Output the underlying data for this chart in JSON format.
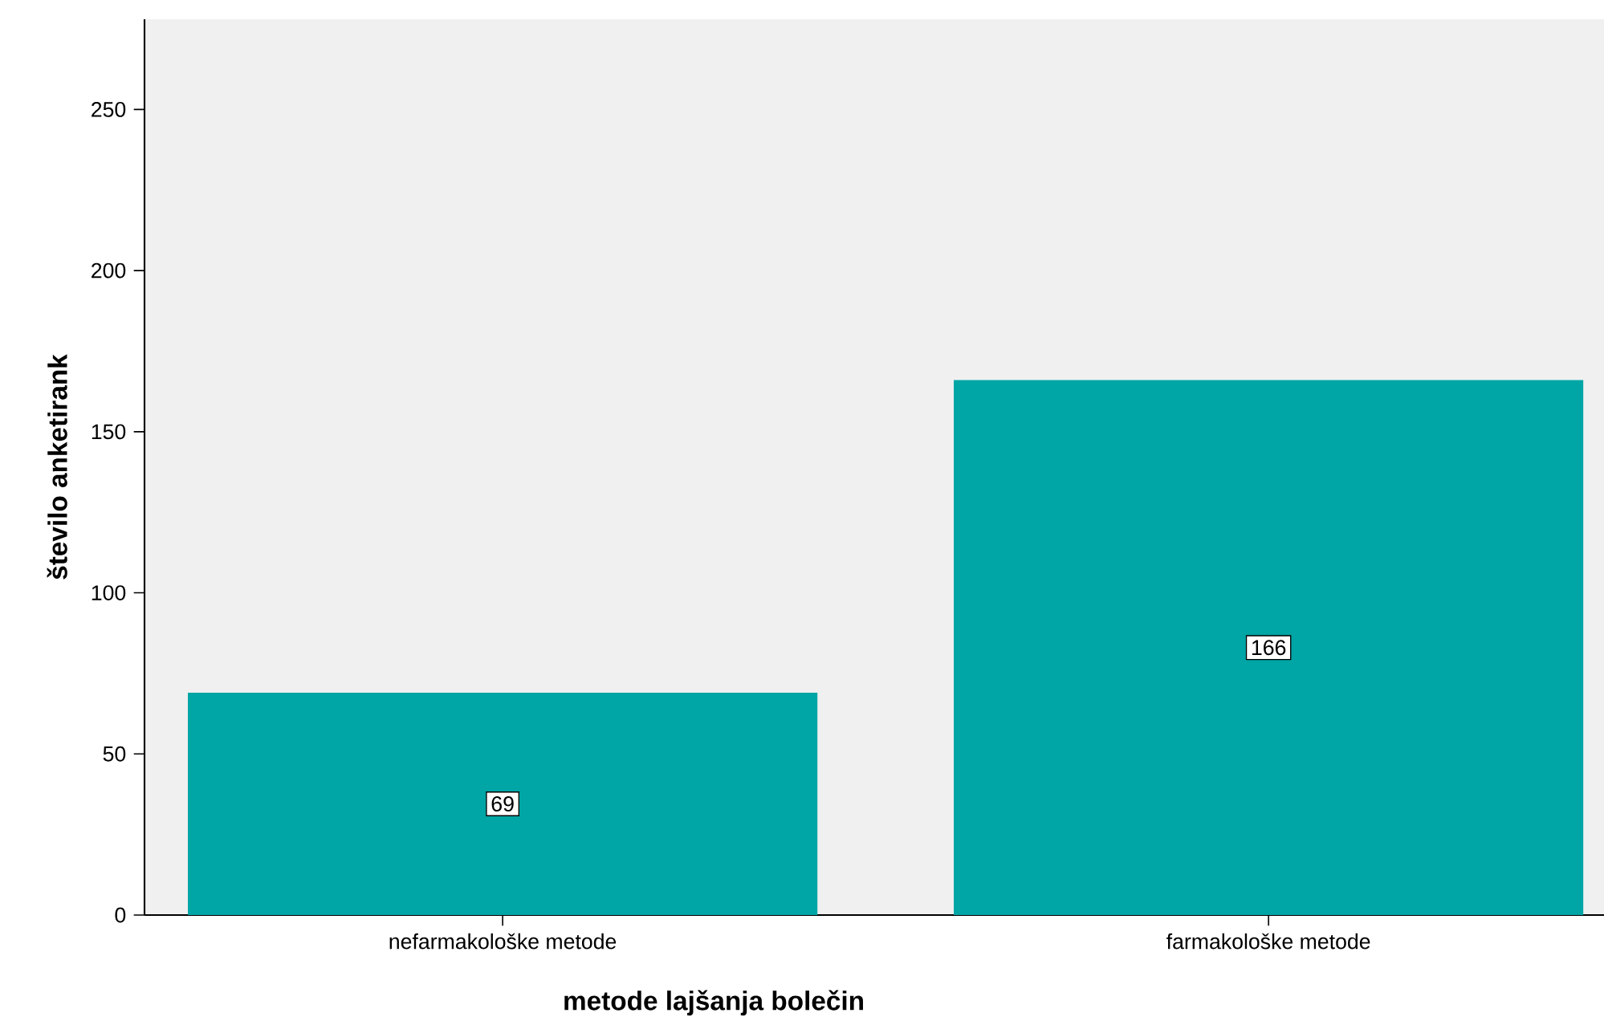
{
  "chart_data": {
    "type": "bar",
    "xlabel": "metode lajšanja bolečin",
    "ylabel": "število anketirank",
    "categories": [
      "nefarmakološke metode",
      "farmakološke metode"
    ],
    "values": [
      69,
      166
    ],
    "color": "#00a5a5",
    "ylim": [
      0,
      278
    ],
    "yticks": [
      0,
      50,
      100,
      150,
      200,
      250
    ],
    "grid": false,
    "data_labels": true
  }
}
